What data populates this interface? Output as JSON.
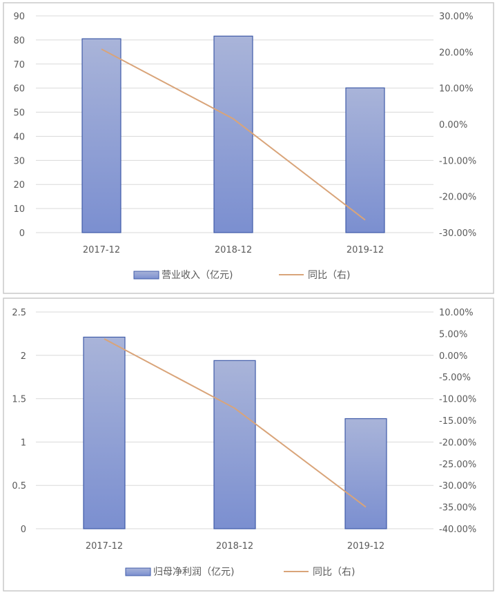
{
  "chart_data": [
    {
      "type": "bar",
      "categories": [
        "2017-12",
        "2018-12",
        "2019-12"
      ],
      "series": [
        {
          "name": "营业收入（亿元)",
          "type": "bar",
          "axis": "left",
          "values": [
            80.5,
            81.6,
            60.1
          ]
        },
        {
          "name": "同比（右)",
          "type": "line",
          "axis": "right",
          "values": [
            20.8,
            1.5,
            -26.5
          ]
        }
      ],
      "left_axis": {
        "ylim": [
          0,
          90
        ],
        "ticks": [
          0,
          10,
          20,
          30,
          40,
          50,
          60,
          70,
          80,
          90
        ],
        "tick_labels": [
          "0",
          "10",
          "20",
          "30",
          "40",
          "50",
          "60",
          "70",
          "80",
          "90"
        ]
      },
      "right_axis": {
        "ylim": [
          -30,
          30
        ],
        "ticks": [
          -30,
          -20,
          -10,
          0,
          10,
          20,
          30
        ],
        "tick_labels": [
          "-30.00%",
          "-20.00%",
          "-10.00%",
          "0.00%",
          "10.00%",
          "20.00%",
          "30.00%"
        ]
      },
      "grid": true,
      "legend": "bottom",
      "colors": {
        "bar_top": "#a9b4d9",
        "bar_bottom": "#7b8fd0",
        "bar_stroke": "#3f5ba8",
        "line": "#d9a479"
      }
    },
    {
      "type": "bar",
      "categories": [
        "2017-12",
        "2018-12",
        "2019-12"
      ],
      "series": [
        {
          "name": "归母净利润（亿元)",
          "type": "bar",
          "axis": "left",
          "values": [
            2.21,
            1.94,
            1.27
          ]
        },
        {
          "name": "同比（右)",
          "type": "line",
          "axis": "right",
          "values": [
            3.8,
            -12.2,
            -35.0
          ]
        }
      ],
      "left_axis": {
        "ylim": [
          0,
          2.5
        ],
        "ticks": [
          0,
          0.5,
          1,
          1.5,
          2,
          2.5
        ],
        "tick_labels": [
          "0",
          "0.5",
          "1",
          "1.5",
          "2",
          "2.5"
        ]
      },
      "right_axis": {
        "ylim": [
          -40,
          10
        ],
        "ticks": [
          -40,
          -35,
          -30,
          -25,
          -20,
          -15,
          -10,
          -5,
          0,
          5,
          10
        ],
        "tick_labels": [
          "-40.00%",
          "-35.00%",
          "-30.00%",
          "-25.00%",
          "-20.00%",
          "-15.00%",
          "-10.00%",
          "-5.00%",
          "0.00%",
          "5.00%",
          "10.00%"
        ]
      },
      "grid": true,
      "legend": "bottom",
      "colors": {
        "bar_top": "#a9b4d9",
        "bar_bottom": "#7b8fd0",
        "bar_stroke": "#3f5ba8",
        "line": "#d9a479"
      }
    }
  ]
}
